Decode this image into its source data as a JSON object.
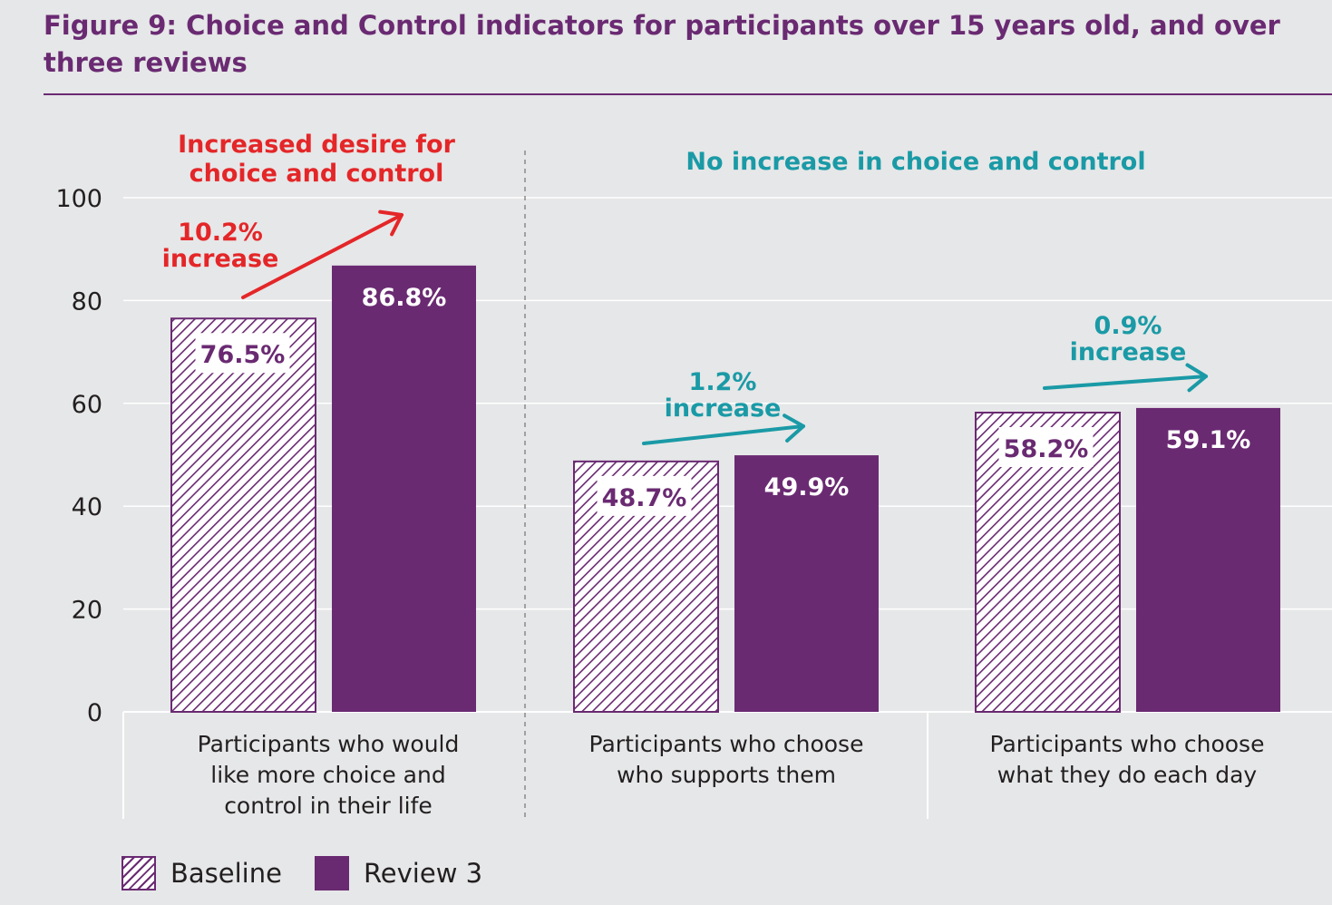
{
  "figure": {
    "title": "Figure 9: Choice and Control indicators for participants over 15 years old, and over three reviews"
  },
  "colors": {
    "title": "#6a2a72",
    "review3": "#6a2a72",
    "baseline_hatch": "#6a2a72",
    "highlight_red": "#e42628",
    "highlight_teal": "#1a9aa6",
    "background": "#e6e7e8",
    "text": "#231f20"
  },
  "chart_data": {
    "type": "bar",
    "categories": [
      "Participants who would like more choice and control in their life",
      "Participants who choose who supports them",
      "Participants who choose what they do each day"
    ],
    "category_lines": [
      [
        "Participants who would",
        "like more choice and",
        "control in their life"
      ],
      [
        "Participants who choose",
        "who supports them"
      ],
      [
        "Participants who choose",
        "what they do each day"
      ]
    ],
    "series": [
      {
        "name": "Baseline",
        "values": [
          76.5,
          48.7,
          58.2
        ],
        "labels": [
          "76.5%",
          "48.7%",
          "58.2%"
        ],
        "pattern": "hatched"
      },
      {
        "name": "Review 3",
        "values": [
          86.8,
          49.9,
          59.1
        ],
        "labels": [
          "86.8%",
          "49.9%",
          "59.1%"
        ],
        "pattern": "solid"
      }
    ],
    "ylim": [
      0,
      100
    ],
    "yticks": [
      "0",
      "20",
      "40",
      "60",
      "80",
      "100"
    ],
    "xlabel": "",
    "ylabel": "",
    "grid": true,
    "legend_position": "bottom-left",
    "section_headings": [
      {
        "lines": [
          "Increased desire for",
          "choice and control"
        ],
        "color": "#e42628"
      },
      {
        "lines": [
          "No increase in choice and control"
        ],
        "color": "#1a9aa6"
      }
    ],
    "annotations": [
      {
        "lines": [
          "10.2%",
          "increase"
        ],
        "color": "#e42628"
      },
      {
        "lines": [
          "1.2%",
          "increase"
        ],
        "color": "#1a9aa6"
      },
      {
        "lines": [
          "0.9%",
          "increase"
        ],
        "color": "#1a9aa6"
      }
    ]
  }
}
